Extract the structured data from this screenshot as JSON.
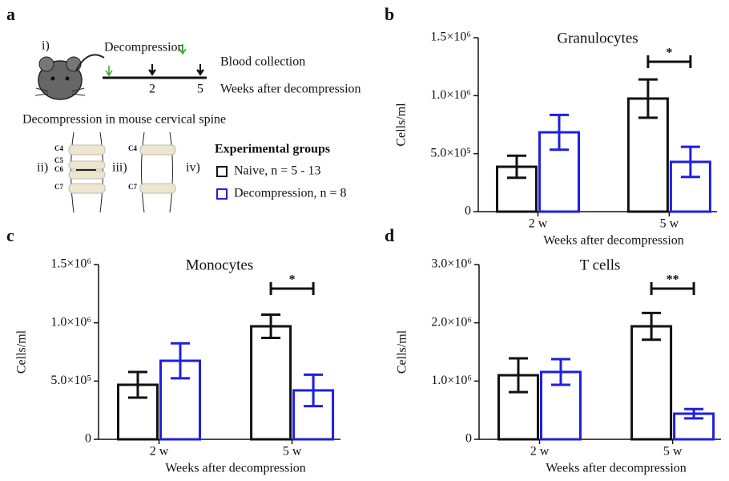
{
  "panel_a": {
    "label": "a",
    "step": "i)",
    "decompression": "Decompression",
    "blood": "Blood collection",
    "week_2": "2",
    "week_5": "5",
    "timeline_label": "Weeks after decompression",
    "spine_title": "Decompression in mouse cervical spine",
    "roman_ii": "ii)",
    "roman_iii": "iii)",
    "roman_iv": "iv)",
    "vertebrae_ii": [
      "C4",
      "C5",
      "C6",
      "C7"
    ],
    "vertebrae_iii": [
      "C4",
      "C7"
    ],
    "legend_title": "Experimental groups"
  },
  "chart_data": [
    {
      "type": "bar",
      "panel": "b",
      "title": "Granulocytes",
      "y_label": "Cells/ml",
      "x_label": "Weeks after decompression",
      "categories": [
        "2 w",
        "5 w"
      ],
      "series": [
        {
          "name": "Naive, n = 5 - 13",
          "color": "#111111",
          "values": [
            387000,
            975000
          ],
          "errors": [
            95000,
            165000
          ]
        },
        {
          "name": "Decompression, n = 8",
          "color": "#1f1fe0",
          "values": [
            684000,
            429000
          ],
          "errors": [
            150000,
            130000
          ]
        }
      ],
      "significance": [
        {
          "category": 1,
          "label": "*"
        }
      ],
      "ylim": [
        0,
        1500000
      ],
      "yticks": [
        0,
        {
          "value": 500000,
          "label": "5.0×10⁵"
        },
        {
          "value": 1000000,
          "label": "1.0×10⁶"
        },
        {
          "value": 1500000,
          "label": "1.5×10⁶"
        }
      ]
    },
    {
      "type": "bar",
      "panel": "c",
      "title": "Monocytes",
      "y_label": "Cells/ml",
      "x_label": "Weeks after decompression",
      "categories": [
        "2 w",
        "5 w"
      ],
      "series": [
        {
          "color": "#111111",
          "values": [
            468000,
            970000
          ],
          "errors": [
            110000,
            100000
          ]
        },
        {
          "color": "#1f1fe0",
          "values": [
            674000,
            420000
          ],
          "errors": [
            150000,
            135000
          ]
        }
      ],
      "significance": [
        {
          "category": 1,
          "label": "*"
        }
      ],
      "ylim": [
        0,
        1500000
      ],
      "yticks": [
        0,
        {
          "value": 500000,
          "label": "5.0×10⁵"
        },
        {
          "value": 1000000,
          "label": "1.0×10⁶"
        },
        {
          "value": 1500000,
          "label": "1.5×10⁶"
        }
      ]
    },
    {
      "type": "bar",
      "panel": "d",
      "title": "T cells",
      "y_label": "Cells/ml",
      "x_label": "Weeks after decompression",
      "categories": [
        "2 w",
        "5 w"
      ],
      "series": [
        {
          "color": "#111111",
          "values": [
            1100000,
            1940000
          ],
          "errors": [
            290000,
            230000
          ]
        },
        {
          "color": "#1f1fe0",
          "values": [
            1156000,
            440000
          ],
          "errors": [
            220000,
            80000
          ]
        }
      ],
      "significance": [
        {
          "category": 1,
          "label": "**"
        }
      ],
      "ylim": [
        0,
        3000000
      ],
      "yticks": [
        0,
        {
          "value": 1000000,
          "label": "1.0×10⁶"
        },
        {
          "value": 2000000,
          "label": "2.0×10⁶"
        },
        {
          "value": 3000000,
          "label": "3.0×10⁶"
        }
      ]
    }
  ]
}
